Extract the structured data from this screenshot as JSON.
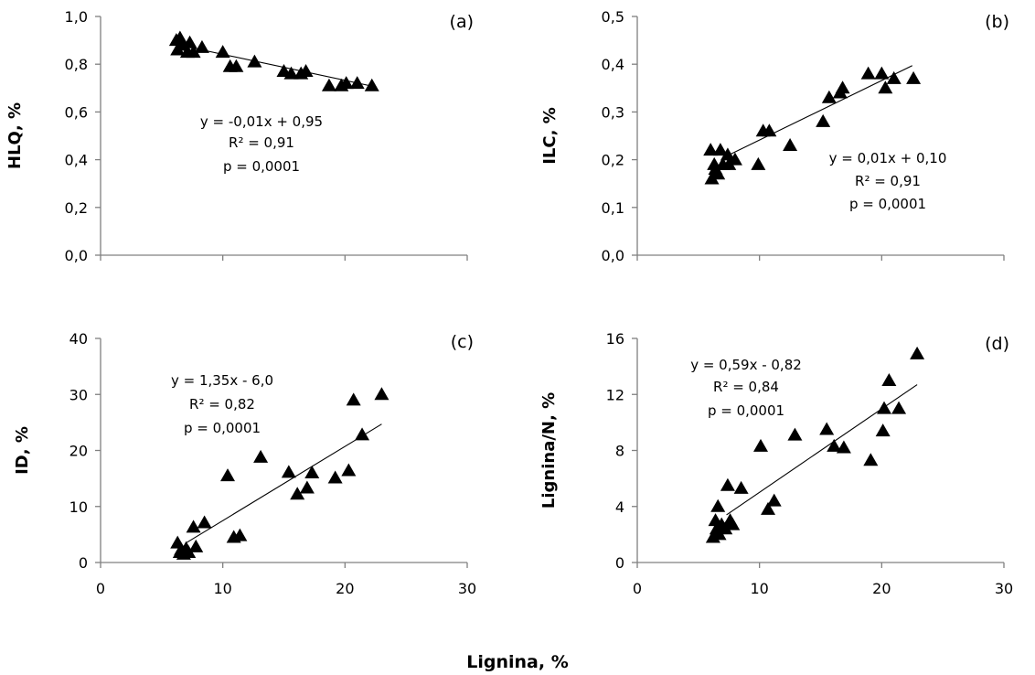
{
  "figure": {
    "xlabel": "Lignina, %"
  },
  "chart_data": [
    {
      "type": "scatter",
      "panel_label": "(a)",
      "xlabel": "",
      "ylabel": "HLQ, %",
      "xlim": [
        0,
        30
      ],
      "ylim": [
        0,
        1.0
      ],
      "xticks": [],
      "xtick_labels": [],
      "yticks": [
        0,
        0.2,
        0.4,
        0.6,
        0.8,
        1.0
      ],
      "ytick_labels": [
        "0,0",
        "0,2",
        "0,4",
        "0,6",
        "0,8",
        "1,0"
      ],
      "points": [
        [
          6.2,
          0.9
        ],
        [
          6.5,
          0.91
        ],
        [
          6.3,
          0.86
        ],
        [
          6.8,
          0.88
        ],
        [
          7.1,
          0.85
        ],
        [
          7.3,
          0.89
        ],
        [
          7.6,
          0.85
        ],
        [
          8.3,
          0.87
        ],
        [
          10.0,
          0.85
        ],
        [
          10.6,
          0.79
        ],
        [
          11.1,
          0.79
        ],
        [
          12.6,
          0.81
        ],
        [
          15.0,
          0.77
        ],
        [
          15.6,
          0.76
        ],
        [
          16.4,
          0.76
        ],
        [
          16.8,
          0.77
        ],
        [
          18.7,
          0.71
        ],
        [
          19.7,
          0.71
        ],
        [
          20.1,
          0.72
        ],
        [
          21.0,
          0.72
        ],
        [
          22.2,
          0.71
        ]
      ],
      "trendline": {
        "x": [
          6.0,
          22.5
        ],
        "y": [
          0.885,
          0.705
        ]
      },
      "annotation": [
        "y = -0,01x + 0,95",
        "R² = 0,91",
        "p = 0,0001"
      ]
    },
    {
      "type": "scatter",
      "panel_label": "(b)",
      "xlabel": "",
      "ylabel": "ILC, %",
      "xlim": [
        0,
        30
      ],
      "ylim": [
        0,
        0.5
      ],
      "xticks": [],
      "xtick_labels": [],
      "yticks": [
        0,
        0.1,
        0.2,
        0.3,
        0.4,
        0.5
      ],
      "ytick_labels": [
        "0,0",
        "0,1",
        "0,2",
        "0,3",
        "0,4",
        "0,5"
      ],
      "points": [
        [
          6.0,
          0.22
        ],
        [
          6.1,
          0.16
        ],
        [
          6.3,
          0.19
        ],
        [
          6.4,
          0.18
        ],
        [
          6.6,
          0.17
        ],
        [
          6.8,
          0.22
        ],
        [
          7.0,
          0.19
        ],
        [
          7.4,
          0.21
        ],
        [
          7.5,
          0.19
        ],
        [
          8.0,
          0.2
        ],
        [
          9.9,
          0.19
        ],
        [
          10.3,
          0.26
        ],
        [
          10.8,
          0.26
        ],
        [
          12.5,
          0.23
        ],
        [
          15.2,
          0.28
        ],
        [
          15.7,
          0.33
        ],
        [
          16.6,
          0.34
        ],
        [
          16.8,
          0.35
        ],
        [
          18.9,
          0.38
        ],
        [
          20.0,
          0.38
        ],
        [
          20.3,
          0.35
        ],
        [
          21.0,
          0.37
        ],
        [
          22.6,
          0.37
        ]
      ],
      "trendline": {
        "x": [
          7.5,
          22.5
        ],
        "y": [
          0.21,
          0.397
        ]
      },
      "annotation": [
        "y = 0,01x + 0,10",
        "R² = 0,91",
        "p = 0,0001"
      ]
    },
    {
      "type": "scatter",
      "panel_label": "(c)",
      "xlabel": "",
      "ylabel": "ID, %",
      "xlim": [
        0,
        30
      ],
      "ylim": [
        0,
        40
      ],
      "xticks": [
        0,
        10,
        20,
        30
      ],
      "xtick_labels": [
        "0",
        "10",
        "20",
        "30"
      ],
      "yticks": [
        0,
        10,
        20,
        30,
        40
      ],
      "ytick_labels": [
        "0",
        "10",
        "20",
        "30",
        "40"
      ],
      "points": [
        [
          6.3,
          3.5
        ],
        [
          6.5,
          1.8
        ],
        [
          6.6,
          2.3
        ],
        [
          6.8,
          1.5
        ],
        [
          7.0,
          2.5
        ],
        [
          7.2,
          1.8
        ],
        [
          7.6,
          6.3
        ],
        [
          7.8,
          2.8
        ],
        [
          8.5,
          7.1
        ],
        [
          10.4,
          15.5
        ],
        [
          10.9,
          4.5
        ],
        [
          11.4,
          4.8
        ],
        [
          13.1,
          18.8
        ],
        [
          15.4,
          16.1
        ],
        [
          16.1,
          12.2
        ],
        [
          16.9,
          13.3
        ],
        [
          17.3,
          16.0
        ],
        [
          19.2,
          15.1
        ],
        [
          20.3,
          16.4
        ],
        [
          20.7,
          29.0
        ],
        [
          21.4,
          22.8
        ],
        [
          23.0,
          30.0
        ]
      ],
      "trendline": {
        "x": [
          7.0,
          23.0
        ],
        "y": [
          3.5,
          24.7
        ]
      },
      "annotation": [
        "y = 1,35x - 6,0",
        "R² = 0,82",
        "p =  0,0001"
      ]
    },
    {
      "type": "scatter",
      "panel_label": "(d)",
      "xlabel": "",
      "ylabel": "Lignina/N, %",
      "xlim": [
        0,
        30
      ],
      "ylim": [
        0,
        16
      ],
      "xticks": [
        0,
        10,
        20,
        30
      ],
      "xtick_labels": [
        "0",
        "10",
        "20",
        "30"
      ],
      "yticks": [
        0,
        4,
        8,
        12,
        16
      ],
      "ytick_labels": [
        "0",
        "4",
        "8",
        "12",
        "16"
      ],
      "points": [
        [
          6.2,
          1.8
        ],
        [
          6.4,
          3.0
        ],
        [
          6.5,
          2.4
        ],
        [
          6.6,
          4.0
        ],
        [
          6.7,
          2.0
        ],
        [
          6.9,
          2.7
        ],
        [
          7.2,
          2.4
        ],
        [
          7.4,
          5.5
        ],
        [
          7.6,
          3.0
        ],
        [
          7.8,
          2.7
        ],
        [
          8.5,
          5.3
        ],
        [
          10.1,
          8.3
        ],
        [
          10.7,
          3.8
        ],
        [
          11.2,
          4.4
        ],
        [
          12.9,
          9.1
        ],
        [
          15.5,
          9.5
        ],
        [
          16.1,
          8.3
        ],
        [
          16.9,
          8.2
        ],
        [
          19.1,
          7.3
        ],
        [
          20.1,
          9.4
        ],
        [
          20.2,
          11.0
        ],
        [
          20.6,
          13.0
        ],
        [
          21.4,
          11.0
        ],
        [
          22.9,
          14.9
        ]
      ],
      "trendline": {
        "x": [
          7.3,
          22.9
        ],
        "y": [
          3.4,
          12.7
        ]
      },
      "annotation": [
        "y = 0,59x - 0,82",
        "R² = 0,84",
        "p =  0,0001"
      ]
    }
  ]
}
